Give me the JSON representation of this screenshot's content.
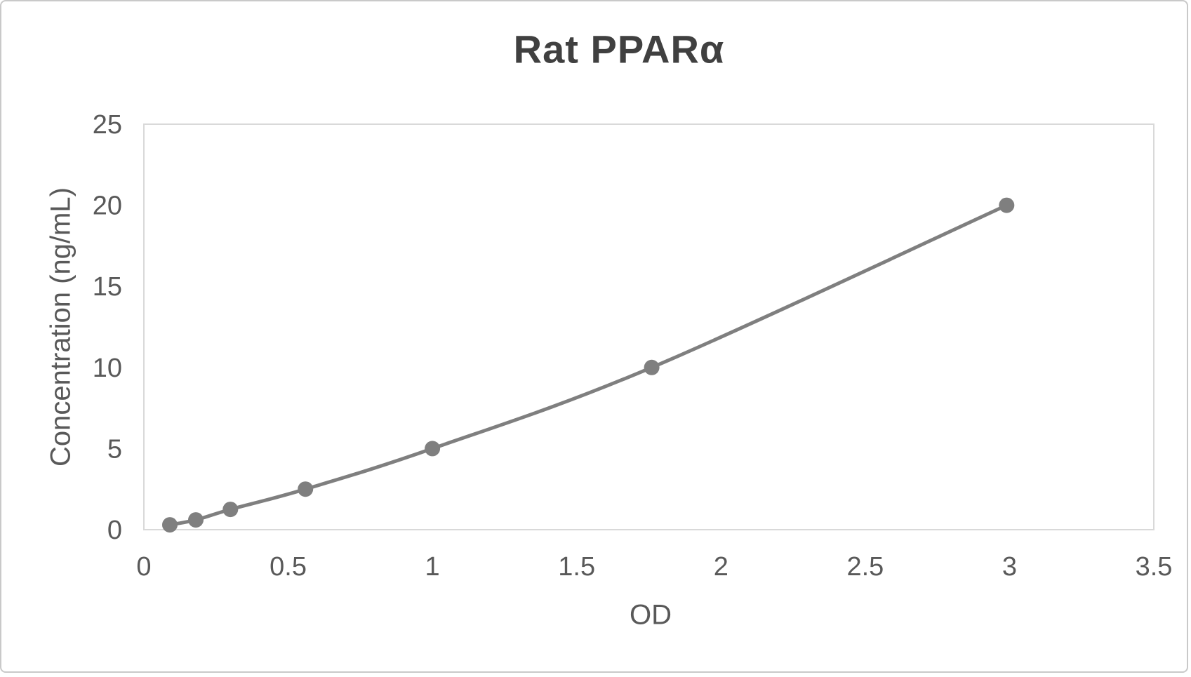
{
  "chart_data": {
    "type": "line",
    "title": "Rat PPARα",
    "xlabel": "OD",
    "ylabel": "Concentration (ng/mL)",
    "x": [
      0.09,
      0.18,
      0.3,
      0.56,
      1.0,
      1.76,
      2.99
    ],
    "y": [
      0.3,
      0.6,
      1.25,
      2.5,
      5,
      10,
      20
    ],
    "x_ticks": [
      0,
      0.5,
      1,
      1.5,
      2,
      2.5,
      3,
      3.5
    ],
    "y_ticks": [
      0,
      5,
      10,
      15,
      20,
      25
    ],
    "xlim": [
      0,
      3.5
    ],
    "ylim": [
      0,
      25
    ],
    "grid": false,
    "legend": false,
    "smooth": true,
    "marker": "circle",
    "line_color": "#7f7f7f",
    "marker_color": "#7f7f7f",
    "title_color": "#404040",
    "axis_text_color": "#595959",
    "plot_border_color": "#d9d9d9",
    "background_color": "#ffffff",
    "frame_border_color": "#c9c9c9"
  }
}
